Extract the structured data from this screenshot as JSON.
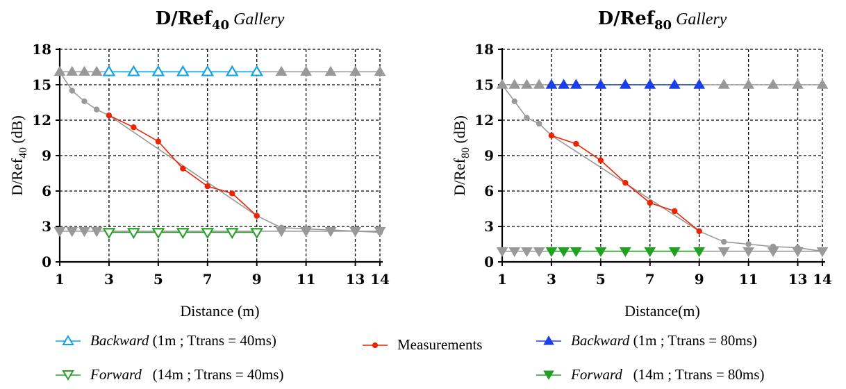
{
  "chart_data": [
    {
      "type": "line",
      "title": {
        "main": "D/Ref",
        "sub": "40",
        "suffix": "Gallery"
      },
      "xlabel": "Distance (m)",
      "ylabel": {
        "main": "D/Ref",
        "sub": "40",
        "unit": "(dB)"
      },
      "xlim": [
        1,
        14
      ],
      "ylim": [
        0,
        18
      ],
      "xticks": [
        1,
        3,
        5,
        7,
        9,
        11,
        13,
        14
      ],
      "yticks": [
        0,
        3,
        6,
        9,
        12,
        15,
        18
      ],
      "grid": true,
      "series": [
        {
          "name": "Measurements",
          "color": "#ee2200",
          "marker": "dot",
          "x": [
            3,
            4,
            5,
            6,
            7,
            8,
            9
          ],
          "y": [
            12.4,
            11.4,
            10.2,
            7.9,
            6.4,
            5.8,
            3.9
          ]
        },
        {
          "color": "#999999",
          "marker": "dot",
          "x": [
            1,
            1.5,
            2,
            2.5,
            3,
            9,
            10,
            11,
            12,
            13,
            14
          ],
          "y": [
            16.1,
            14.5,
            13.6,
            12.9,
            12.4,
            3.9,
            2.9,
            2.8,
            2.7,
            2.6,
            2.5
          ]
        },
        {
          "name": "Backward",
          "color": "#11a3e8",
          "marker": "triangle-up-open",
          "x": [
            3,
            4,
            5,
            6,
            7,
            8,
            9
          ],
          "y": [
            16.1,
            16.1,
            16.1,
            16.1,
            16.1,
            16.1,
            16.1
          ]
        },
        {
          "color": "#999999",
          "marker": "triangle-up-filled",
          "x": [
            1,
            1.5,
            2,
            2.5,
            10,
            11,
            12,
            13,
            14
          ],
          "y": [
            16.1,
            16.1,
            16.1,
            16.1,
            16.1,
            16.1,
            16.1,
            16.1,
            16.1
          ]
        },
        {
          "name": "Forward",
          "color": "#2aa02a",
          "marker": "triangle-down-open",
          "x": [
            3,
            4,
            5,
            6,
            7,
            8,
            9
          ],
          "y": [
            2.5,
            2.5,
            2.5,
            2.5,
            2.5,
            2.5,
            2.5
          ]
        },
        {
          "color": "#999999",
          "marker": "triangle-down-filled",
          "x": [
            1,
            1.5,
            2,
            2.5,
            10,
            11,
            12,
            13,
            14
          ],
          "y": [
            2.6,
            2.6,
            2.6,
            2.6,
            2.6,
            2.6,
            2.6,
            2.6,
            2.6
          ]
        }
      ]
    },
    {
      "type": "line",
      "title": {
        "main": "D/Ref",
        "sub": "80",
        "suffix": "Gallery"
      },
      "xlabel": "Distance(m)",
      "ylabel": {
        "main": "D/Ref",
        "sub": "80",
        "unit": "(dB)"
      },
      "xlim": [
        1,
        14
      ],
      "ylim": [
        0,
        18
      ],
      "xticks": [
        1,
        3,
        5,
        7,
        9,
        11,
        13,
        14
      ],
      "yticks": [
        0,
        3,
        6,
        9,
        12,
        15,
        18
      ],
      "grid": true,
      "series": [
        {
          "name": "Measurements",
          "color": "#ee2200",
          "marker": "dot",
          "x": [
            3,
            4,
            5,
            6,
            7,
            8,
            9
          ],
          "y": [
            10.7,
            10.0,
            8.6,
            6.7,
            5.0,
            4.3,
            2.6
          ]
        },
        {
          "color": "#999999",
          "marker": "dot",
          "x": [
            1,
            1.5,
            2,
            2.5,
            3,
            9,
            10,
            11,
            12,
            13,
            14
          ],
          "y": [
            15.0,
            13.6,
            12.2,
            11.7,
            10.7,
            2.6,
            1.7,
            1.5,
            1.3,
            1.2,
            0.9
          ]
        },
        {
          "name": "Backward",
          "color": "#1a3ee8",
          "marker": "triangle-up-filled",
          "x": [
            3,
            3.5,
            4,
            5,
            6,
            7,
            8,
            9
          ],
          "y": [
            15.0,
            15.0,
            15.0,
            15.0,
            15.0,
            15.0,
            15.0,
            15.0
          ]
        },
        {
          "color": "#999999",
          "marker": "triangle-up-filled",
          "x": [
            1,
            1.5,
            2,
            2.5,
            10,
            11,
            12,
            13,
            14
          ],
          "y": [
            15.0,
            15.0,
            15.0,
            15.0,
            15.0,
            15.0,
            15.0,
            15.0,
            15.0
          ]
        },
        {
          "name": "Forward",
          "color": "#22a022",
          "marker": "triangle-down-filled",
          "x": [
            3,
            3.5,
            4,
            5,
            6,
            7,
            8,
            9
          ],
          "y": [
            0.9,
            0.9,
            0.9,
            0.9,
            0.9,
            0.9,
            0.9,
            0.9
          ]
        },
        {
          "color": "#999999",
          "marker": "triangle-down-filled",
          "x": [
            1,
            1.5,
            2,
            2.5,
            10,
            11,
            12,
            13,
            14
          ],
          "y": [
            0.9,
            0.9,
            0.9,
            0.9,
            0.9,
            0.9,
            0.9,
            0.9,
            0.9
          ]
        }
      ]
    }
  ],
  "legend": {
    "backward40": {
      "name": "Backward",
      "detail": "(1m ; Ttrans = 40ms)",
      "color": "#11a3e8",
      "marker": "triangle-up-open"
    },
    "forward40": {
      "name": "Forward",
      "detail": "(14m ; Ttrans = 40ms)",
      "color": "#2aa02a",
      "marker": "triangle-down-open"
    },
    "measurements": {
      "name": "Measurements",
      "color": "#ee2200",
      "marker": "dot"
    },
    "backward80": {
      "name": "Backward",
      "detail": "(1m ; Ttrans = 80ms)",
      "color": "#1a3ee8",
      "marker": "triangle-up-filled"
    },
    "forward80": {
      "name": "Forward",
      "detail": "(14m ; Ttrans = 80ms)",
      "color": "#22a022",
      "marker": "triangle-down-filled"
    }
  }
}
